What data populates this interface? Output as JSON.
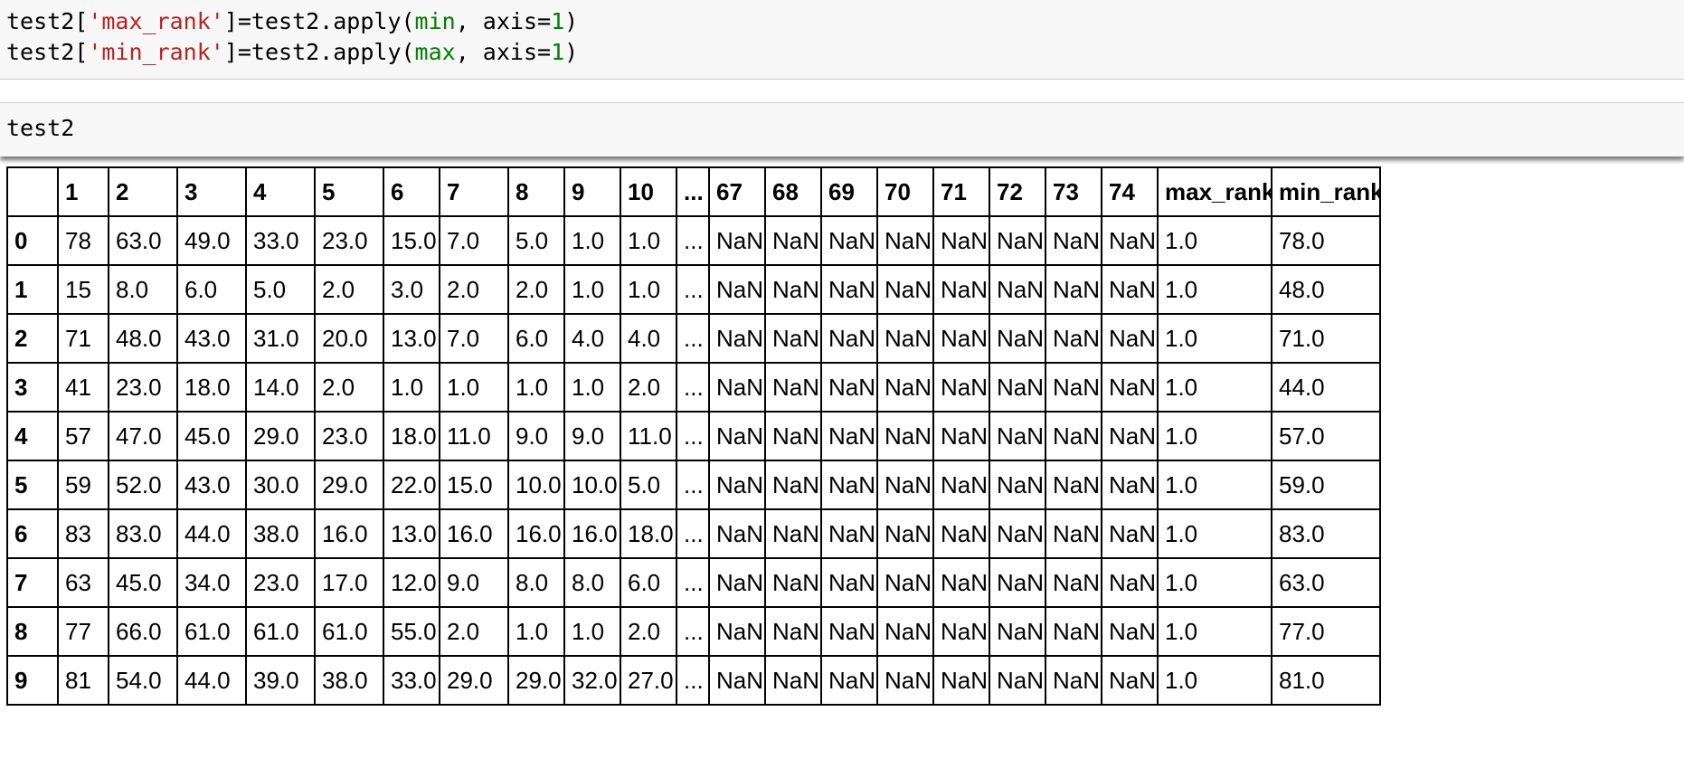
{
  "cells": [
    {
      "lines": [
        [
          {
            "text": "test2[",
            "cls": ""
          },
          {
            "text": "'max_rank'",
            "cls": "tok-str"
          },
          {
            "text": "]=test2.apply(",
            "cls": ""
          },
          {
            "text": "min",
            "cls": "tok-builtin"
          },
          {
            "text": ", axis=",
            "cls": ""
          },
          {
            "text": "1",
            "cls": "tok-num"
          },
          {
            "text": ")",
            "cls": ""
          }
        ],
        [
          {
            "text": "test2[",
            "cls": ""
          },
          {
            "text": "'min_rank'",
            "cls": "tok-str"
          },
          {
            "text": "]=test2.apply(",
            "cls": ""
          },
          {
            "text": "max",
            "cls": "tok-builtin"
          },
          {
            "text": ", axis=",
            "cls": ""
          },
          {
            "text": "1",
            "cls": "tok-num"
          },
          {
            "text": ")",
            "cls": ""
          }
        ]
      ]
    },
    {
      "lines": [
        [
          {
            "text": "test2",
            "cls": ""
          }
        ]
      ]
    }
  ],
  "table": {
    "columns": [
      "",
      "1",
      "2",
      "3",
      "4",
      "5",
      "6",
      "7",
      "8",
      "9",
      "10",
      "...",
      "67",
      "68",
      "69",
      "70",
      "71",
      "72",
      "73",
      "74",
      "max_rank",
      "min_rank"
    ],
    "rows": [
      {
        "index": "0",
        "values": [
          "78",
          "63.0",
          "49.0",
          "33.0",
          "23.0",
          "15.0",
          "7.0",
          "5.0",
          "1.0",
          "1.0",
          "...",
          "NaN",
          "NaN",
          "NaN",
          "NaN",
          "NaN",
          "NaN",
          "NaN",
          "NaN",
          "1.0",
          "78.0"
        ]
      },
      {
        "index": "1",
        "values": [
          "15",
          "8.0",
          "6.0",
          "5.0",
          "2.0",
          "3.0",
          "2.0",
          "2.0",
          "1.0",
          "1.0",
          "...",
          "NaN",
          "NaN",
          "NaN",
          "NaN",
          "NaN",
          "NaN",
          "NaN",
          "NaN",
          "1.0",
          "48.0"
        ]
      },
      {
        "index": "2",
        "values": [
          "71",
          "48.0",
          "43.0",
          "31.0",
          "20.0",
          "13.0",
          "7.0",
          "6.0",
          "4.0",
          "4.0",
          "...",
          "NaN",
          "NaN",
          "NaN",
          "NaN",
          "NaN",
          "NaN",
          "NaN",
          "NaN",
          "1.0",
          "71.0"
        ]
      },
      {
        "index": "3",
        "values": [
          "41",
          "23.0",
          "18.0",
          "14.0",
          "2.0",
          "1.0",
          "1.0",
          "1.0",
          "1.0",
          "2.0",
          "...",
          "NaN",
          "NaN",
          "NaN",
          "NaN",
          "NaN",
          "NaN",
          "NaN",
          "NaN",
          "1.0",
          "44.0"
        ]
      },
      {
        "index": "4",
        "values": [
          "57",
          "47.0",
          "45.0",
          "29.0",
          "23.0",
          "18.0",
          "11.0",
          "9.0",
          "9.0",
          "11.0",
          "...",
          "NaN",
          "NaN",
          "NaN",
          "NaN",
          "NaN",
          "NaN",
          "NaN",
          "NaN",
          "1.0",
          "57.0"
        ]
      },
      {
        "index": "5",
        "values": [
          "59",
          "52.0",
          "43.0",
          "30.0",
          "29.0",
          "22.0",
          "15.0",
          "10.0",
          "10.0",
          "5.0",
          "...",
          "NaN",
          "NaN",
          "NaN",
          "NaN",
          "NaN",
          "NaN",
          "NaN",
          "NaN",
          "1.0",
          "59.0"
        ]
      },
      {
        "index": "6",
        "values": [
          "83",
          "83.0",
          "44.0",
          "38.0",
          "16.0",
          "13.0",
          "16.0",
          "16.0",
          "16.0",
          "18.0",
          "...",
          "NaN",
          "NaN",
          "NaN",
          "NaN",
          "NaN",
          "NaN",
          "NaN",
          "NaN",
          "1.0",
          "83.0"
        ]
      },
      {
        "index": "7",
        "values": [
          "63",
          "45.0",
          "34.0",
          "23.0",
          "17.0",
          "12.0",
          "9.0",
          "8.0",
          "8.0",
          "6.0",
          "...",
          "NaN",
          "NaN",
          "NaN",
          "NaN",
          "NaN",
          "NaN",
          "NaN",
          "NaN",
          "1.0",
          "63.0"
        ]
      },
      {
        "index": "8",
        "values": [
          "77",
          "66.0",
          "61.0",
          "61.0",
          "61.0",
          "55.0",
          "2.0",
          "1.0",
          "1.0",
          "2.0",
          "...",
          "NaN",
          "NaN",
          "NaN",
          "NaN",
          "NaN",
          "NaN",
          "NaN",
          "NaN",
          "1.0",
          "77.0"
        ]
      },
      {
        "index": "9",
        "values": [
          "81",
          "54.0",
          "44.0",
          "39.0",
          "38.0",
          "33.0",
          "29.0",
          "29.0",
          "32.0",
          "27.0",
          "...",
          "NaN",
          "NaN",
          "NaN",
          "NaN",
          "NaN",
          "NaN",
          "NaN",
          "NaN",
          "1.0",
          "81.0"
        ]
      }
    ]
  }
}
